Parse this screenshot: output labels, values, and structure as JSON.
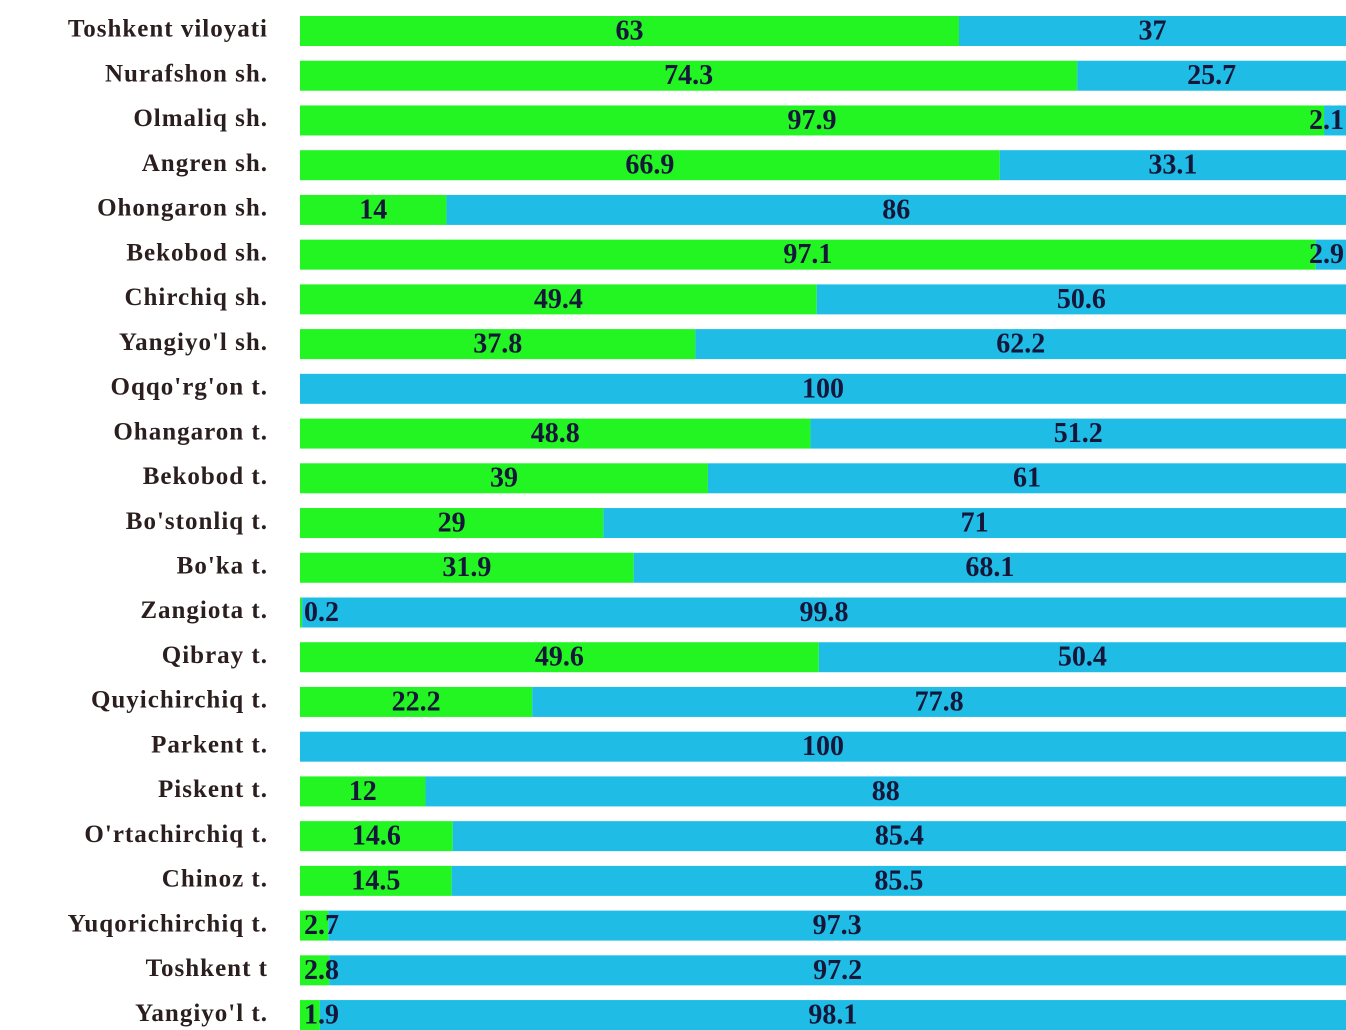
{
  "chart_data": {
    "type": "stacked_barh",
    "categories": [
      "Toshkent viloyati",
      "Nurafshon sh.",
      "Olmaliq sh.",
      "Angren sh.",
      "Ohongaron sh.",
      "Bekobod sh.",
      "Chirchiq sh.",
      "Yangiyo'l sh.",
      "Oqqo'rg'on t.",
      "Ohangaron t.",
      "Bekobod t.",
      "Bo'stonliq t.",
      "Bo'ka t.",
      "Zangiota t.",
      "Qibray t.",
      "Quyichirchiq t.",
      "Parkent t.",
      "Piskent t.",
      "O'rtachirchiq t.",
      "Chinoz t.",
      "Yuqorichirchiq t.",
      "Toshkent t",
      "Yangiyo'l t."
    ],
    "series": [
      {
        "color": "#22f522",
        "values": [
          63,
          74.3,
          97.9,
          66.9,
          14,
          97.1,
          49.4,
          37.8,
          0,
          48.8,
          39,
          29,
          31.9,
          0.2,
          49.6,
          22.2,
          0,
          12,
          14.6,
          14.5,
          2.7,
          2.8,
          1.9
        ],
        "value_labels": [
          "63",
          "74.3",
          "97.9",
          "66.9",
          "14",
          "97.1",
          "49.4",
          "37.8",
          null,
          "48.8",
          "39",
          "29",
          "31.9",
          "0.2",
          "49.6",
          "22.2",
          null,
          "12",
          "14.6",
          "14.5",
          "2.7",
          "2.8",
          "1.9"
        ]
      },
      {
        "color": "#1fbde6",
        "values": [
          37,
          25.7,
          2.1,
          33.1,
          86,
          2.9,
          50.6,
          62.2,
          100,
          51.2,
          61,
          71,
          68.1,
          99.8,
          50.4,
          77.8,
          100,
          88,
          85.4,
          85.5,
          97.3,
          97.2,
          98.1
        ]
      }
    ],
    "xlim": [
      0,
      100
    ]
  }
}
